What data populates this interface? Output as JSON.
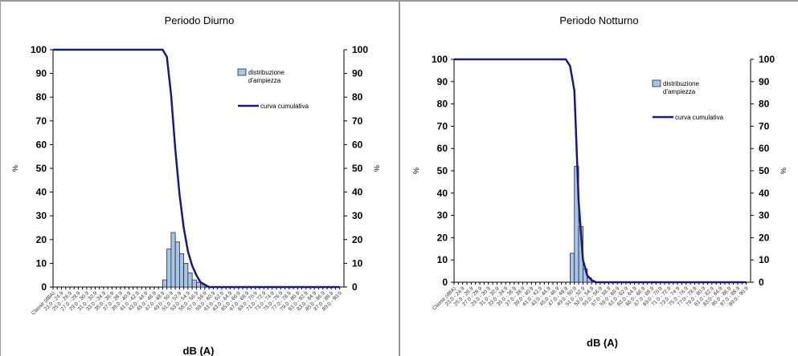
{
  "chart_data": [
    {
      "type": "bar+line",
      "title": "Periodo Diurno",
      "xlabel": "dB (A)",
      "ylabel_left": "%",
      "ylabel_right": "%",
      "ylim": [
        0,
        100
      ],
      "yticks": [
        0,
        10,
        20,
        30,
        40,
        50,
        60,
        70,
        80,
        90,
        100
      ],
      "x_first_label": "Classe (dBA)",
      "legend": {
        "bar": "distribuzione d'ampiezza",
        "line": "curva cumulativa",
        "placement": "top-right"
      },
      "colors": {
        "bar_fill": "#a9c4e4",
        "bar_stroke": "#1f2a44",
        "line": "#1a1a7a"
      },
      "bins_start": 21.0,
      "bin_width": 1.0,
      "bin_count": 69,
      "bars": [
        {
          "x": 47.0,
          "value": 3
        },
        {
          "x": 48.0,
          "value": 16
        },
        {
          "x": 49.0,
          "value": 23
        },
        {
          "x": 50.0,
          "value": 19
        },
        {
          "x": 51.0,
          "value": 14
        },
        {
          "x": 52.0,
          "value": 10
        },
        {
          "x": 53.0,
          "value": 6
        },
        {
          "x": 54.0,
          "value": 3
        },
        {
          "x": 55.0,
          "value": 2
        },
        {
          "x": 56.0,
          "value": 1
        }
      ],
      "cumulative": [
        {
          "x": 21.0,
          "y": 100
        },
        {
          "x": 47.0,
          "y": 100
        },
        {
          "x": 48.0,
          "y": 97
        },
        {
          "x": 49.0,
          "y": 81
        },
        {
          "x": 50.0,
          "y": 58
        },
        {
          "x": 51.0,
          "y": 39
        },
        {
          "x": 52.0,
          "y": 25
        },
        {
          "x": 53.0,
          "y": 15
        },
        {
          "x": 54.0,
          "y": 9
        },
        {
          "x": 55.0,
          "y": 5
        },
        {
          "x": 56.0,
          "y": 2
        },
        {
          "x": 57.0,
          "y": 1
        },
        {
          "x": 58.0,
          "y": 0
        },
        {
          "x": 89.0,
          "y": 0
        }
      ]
    },
    {
      "type": "bar+line",
      "title": "Periodo Notturno",
      "xlabel": "dB (A)",
      "ylabel_left": "%",
      "ylabel_right": "%",
      "ylim": [
        0,
        100
      ],
      "yticks": [
        0,
        10,
        20,
        30,
        40,
        50,
        60,
        70,
        80,
        90,
        100
      ],
      "x_first_label": "Classe (dBA)",
      "legend": {
        "bar": "distribuzione d'ampiezza",
        "line": "curva cumulativa",
        "placement": "top-right"
      },
      "colors": {
        "bar_fill": "#a9c4e4",
        "bar_stroke": "#1f2a44",
        "line": "#1a1a7a"
      },
      "bins_start": 21.0,
      "bin_width": 1.0,
      "bin_count": 69,
      "bars": [
        {
          "x": 48.0,
          "value": 13
        },
        {
          "x": 49.0,
          "value": 52
        },
        {
          "x": 50.0,
          "value": 25
        },
        {
          "x": 51.0,
          "value": 6
        },
        {
          "x": 52.0,
          "value": 2
        }
      ],
      "cumulative": [
        {
          "x": 21.0,
          "y": 100
        },
        {
          "x": 47.0,
          "y": 100
        },
        {
          "x": 48.0,
          "y": 97
        },
        {
          "x": 49.0,
          "y": 86
        },
        {
          "x": 50.0,
          "y": 36
        },
        {
          "x": 51.0,
          "y": 10
        },
        {
          "x": 52.0,
          "y": 3
        },
        {
          "x": 53.0,
          "y": 1
        },
        {
          "x": 54.0,
          "y": 0
        },
        {
          "x": 89.0,
          "y": 0
        }
      ]
    }
  ]
}
